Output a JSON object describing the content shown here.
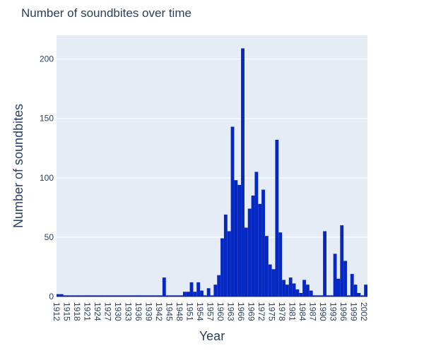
{
  "chart_data": {
    "type": "bar",
    "title": "Number of soundbites over time",
    "xlabel": "Year",
    "ylabel": "Number of soundbites",
    "ylim": [
      0,
      220
    ],
    "yticks": [
      0,
      50,
      100,
      150,
      200
    ],
    "xlim": [
      1912,
      2003
    ],
    "xticks": [
      1912,
      1915,
      1918,
      1921,
      1924,
      1927,
      1930,
      1933,
      1936,
      1939,
      1942,
      1945,
      1948,
      1951,
      1954,
      1957,
      1960,
      1963,
      1966,
      1969,
      1972,
      1975,
      1978,
      1981,
      1984,
      1987,
      1990,
      1993,
      1996,
      1999,
      2002
    ],
    "grid": true,
    "bar_color": "#0528c2",
    "plot_bg": "#e5ecf6",
    "x": [
      1912,
      1913,
      1914,
      1915,
      1916,
      1917,
      1918,
      1919,
      1920,
      1921,
      1922,
      1923,
      1924,
      1925,
      1926,
      1927,
      1928,
      1929,
      1930,
      1931,
      1932,
      1933,
      1934,
      1935,
      1936,
      1937,
      1938,
      1939,
      1940,
      1941,
      1942,
      1943,
      1944,
      1945,
      1946,
      1947,
      1948,
      1949,
      1950,
      1951,
      1952,
      1953,
      1954,
      1955,
      1956,
      1957,
      1958,
      1959,
      1960,
      1961,
      1962,
      1963,
      1964,
      1965,
      1966,
      1967,
      1968,
      1969,
      1970,
      1971,
      1972,
      1973,
      1974,
      1975,
      1976,
      1977,
      1978,
      1979,
      1980,
      1981,
      1982,
      1983,
      1984,
      1985,
      1986,
      1987,
      1988,
      1989,
      1990,
      1991,
      1992,
      1993,
      1994,
      1995,
      1996,
      1997,
      1998,
      1999,
      2000,
      2001,
      2002
    ],
    "values": [
      2,
      2,
      1,
      1,
      1,
      1,
      1,
      1,
      1,
      1,
      1,
      1,
      1,
      1,
      1,
      1,
      1,
      1,
      1,
      1,
      1,
      1,
      1,
      1,
      1,
      1,
      1,
      1,
      1,
      1,
      1,
      16,
      1,
      1,
      1,
      1,
      1,
      4,
      4,
      12,
      4,
      12,
      5,
      1,
      7,
      1,
      10,
      18,
      49,
      69,
      55,
      143,
      98,
      94,
      209,
      58,
      74,
      85,
      105,
      78,
      90,
      51,
      27,
      23,
      132,
      54,
      14,
      10,
      16,
      11,
      6,
      3,
      14,
      10,
      5,
      1,
      1,
      1,
      55,
      1,
      1,
      36,
      15,
      60,
      30,
      1,
      19,
      10,
      3,
      1,
      10
    ]
  }
}
